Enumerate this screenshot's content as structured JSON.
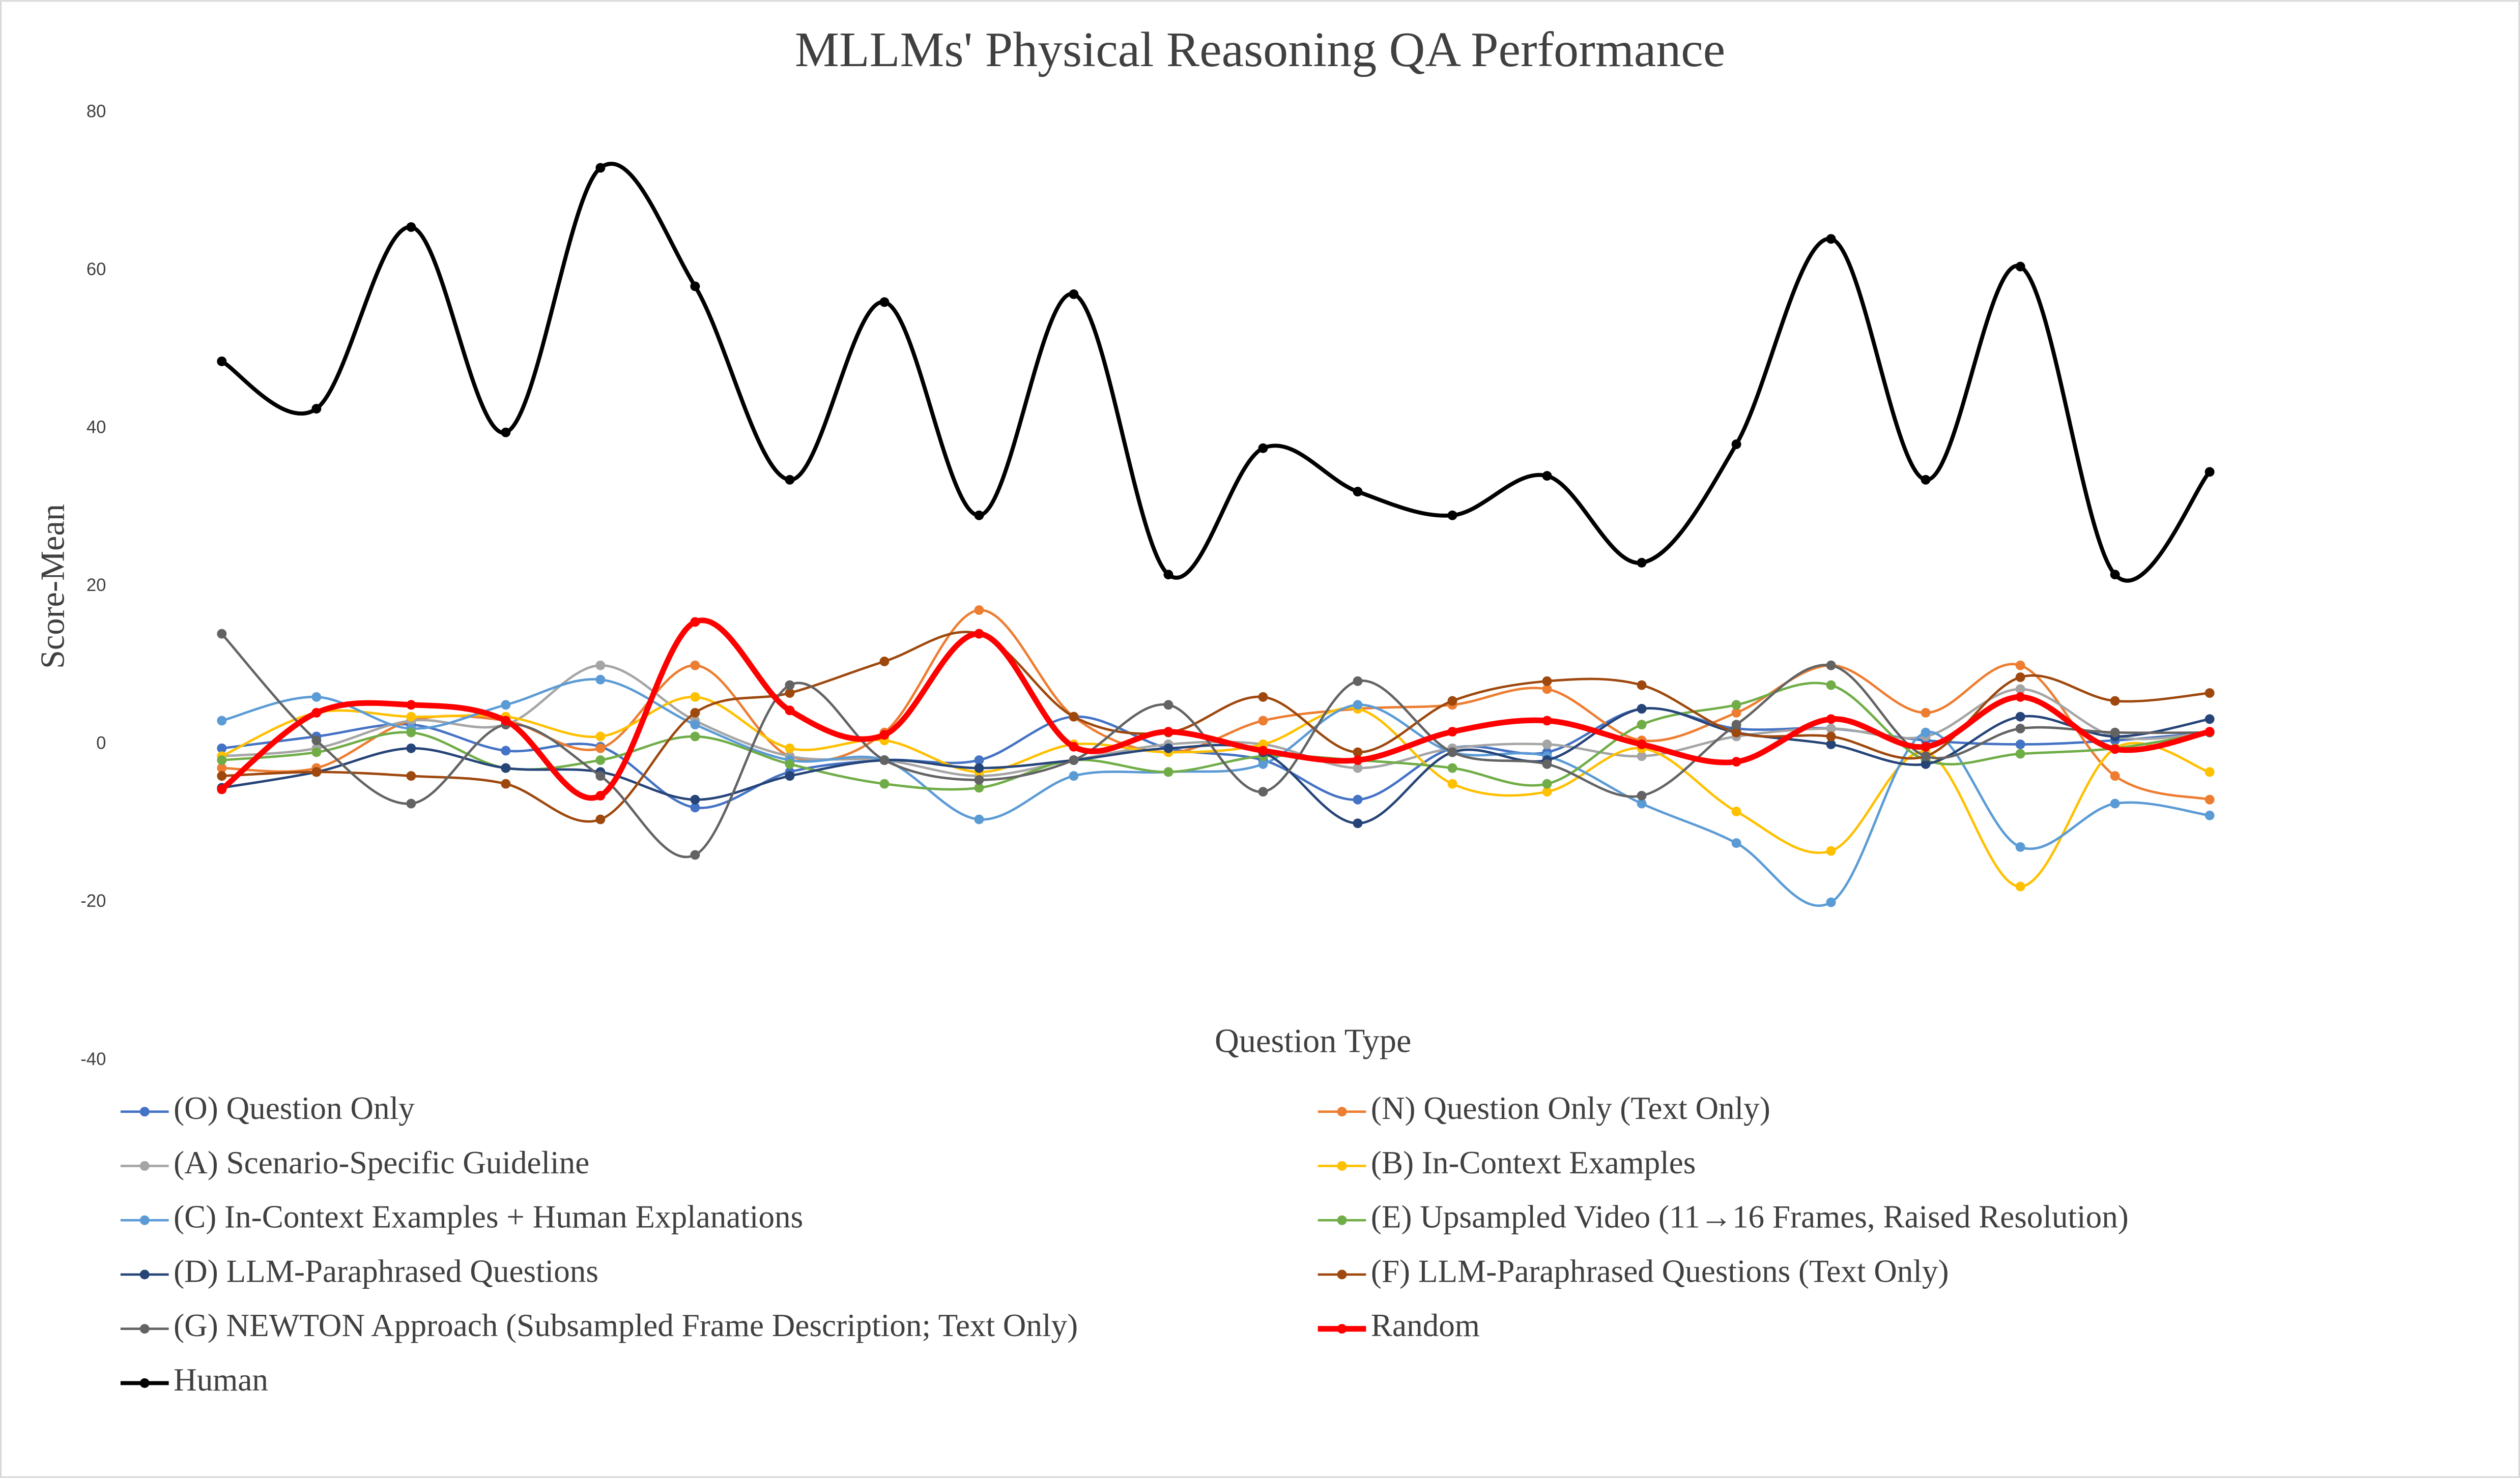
{
  "chart_data": {
    "type": "line",
    "title": "MLLMs' Physical Reasoning QA Performance",
    "x_label": "Question Type",
    "y_label": "Score-Mean",
    "categories": [
      null,
      null,
      null,
      null,
      null,
      null,
      null,
      null,
      null,
      null,
      null,
      null,
      null,
      null,
      null,
      null,
      null,
      null,
      null,
      null,
      null,
      null
    ],
    "ylim": [
      -40,
      80
    ],
    "yticks": [
      -40,
      -20,
      0,
      20,
      40,
      60,
      80
    ],
    "grid": false,
    "legend": "bottom",
    "series": [
      {
        "name": "(O) Question Only",
        "color": "#4472c4",
        "values": [
          -0.5,
          1,
          2.5,
          -0.8,
          -0.3,
          -8,
          -3.5,
          -2,
          -2,
          3.5,
          -0.5,
          -2,
          -7,
          -0.5,
          -1,
          4.5,
          2,
          2,
          0.5,
          0,
          0.5,
          1.5
        ]
      },
      {
        "name": "(N) Question Only (Text Only)",
        "color": "#ed7d31",
        "values": [
          -3,
          -3,
          3,
          3,
          -0.5,
          10,
          -1.5,
          1.5,
          17,
          3.5,
          -1,
          3,
          4.5,
          5,
          7,
          0.5,
          4,
          10,
          4,
          10,
          -4,
          -7
        ]
      },
      {
        "name": "(A) Scenario-Specific Guideline",
        "color": "#a5a5a5",
        "values": [
          -1.5,
          -0.5,
          3,
          2.5,
          10,
          3,
          -1.5,
          -2,
          -4,
          -2,
          0,
          0,
          -3,
          -0.5,
          0,
          -1.5,
          1,
          2,
          1,
          7,
          1,
          1.5
        ]
      },
      {
        "name": "(B) In-Context Examples",
        "color": "#ffc000",
        "values": [
          -1.5,
          4,
          3.5,
          3.5,
          1,
          6,
          -0.5,
          0.5,
          -3.5,
          0,
          -1,
          0,
          4.5,
          -5,
          -6,
          -0.5,
          -8.5,
          -13.5,
          -1,
          -18,
          -0.5,
          -3.5
        ]
      },
      {
        "name": "(C) In-Context Examples + Human Explanations",
        "color": "#5b9bd5",
        "values": [
          3,
          6,
          2,
          5,
          8.2,
          2.5,
          -2,
          -2,
          -9.5,
          -4,
          -3.5,
          -2.5,
          5,
          -1,
          -1.5,
          -7.5,
          -12.5,
          -20,
          1.5,
          -13,
          -7.5,
          -9
        ]
      },
      {
        "name": "(E) Upsampled Video (11→16 Frames, Raised Resolution)",
        "color": "#70ad47",
        "values": [
          -2,
          -1,
          1.5,
          -3,
          -2,
          1,
          -2.5,
          -5,
          -5.5,
          -2,
          -3.5,
          -1.5,
          -2,
          -3,
          -5,
          2.5,
          5,
          7.5,
          -2,
          -1.2,
          -0.5,
          1.5
        ]
      },
      {
        "name": "(D) LLM-Paraphrased Questions",
        "color": "#264478",
        "values": [
          -5.5,
          -3.5,
          -0.5,
          -3,
          -3.5,
          -7,
          -4,
          -2,
          -3,
          -2,
          -0.5,
          -1,
          -10,
          -1,
          -2,
          4.5,
          1.5,
          0,
          -2.5,
          3.5,
          1,
          3.2
        ]
      },
      {
        "name": "(F) LLM-Paraphrased Questions (Text Only)",
        "color": "#9e480e",
        "values": [
          -4,
          -3.5,
          -4,
          -5,
          -9.5,
          4,
          6.5,
          10.5,
          14,
          3.5,
          1.5,
          6,
          -1,
          5.5,
          8,
          7.5,
          1.5,
          1,
          -1.5,
          8.5,
          5.5,
          6.5
        ]
      },
      {
        "name": "(G) NEWTON Approach (Subsampled Frame Description; Text Only)",
        "color": "#636363",
        "values": [
          14,
          0.5,
          -7.5,
          2.5,
          -4,
          -14,
          7.5,
          -2,
          -4.5,
          -2,
          5,
          -6,
          8,
          -1,
          -2.5,
          -6.5,
          2.5,
          10,
          -1.5,
          2,
          1.5,
          1.5
        ]
      },
      {
        "name": "Random",
        "color": "#ff0000",
        "values": [
          -5.7,
          4,
          5,
          3,
          -6.5,
          15.5,
          4.3,
          1.2,
          14,
          -0.3,
          1.6,
          -0.8,
          -2,
          1.6,
          3,
          0,
          -2.2,
          3.2,
          -0.3,
          6,
          -0.6,
          1.6
        ]
      },
      {
        "name": "Human",
        "color": "#000000",
        "values": [
          48.5,
          42.5,
          65.5,
          39.5,
          73,
          58,
          33.5,
          56,
          29,
          57,
          21.5,
          37.5,
          32,
          29,
          34,
          23,
          38,
          64,
          33.5,
          60.5,
          21.5,
          34.5
        ]
      }
    ]
  }
}
